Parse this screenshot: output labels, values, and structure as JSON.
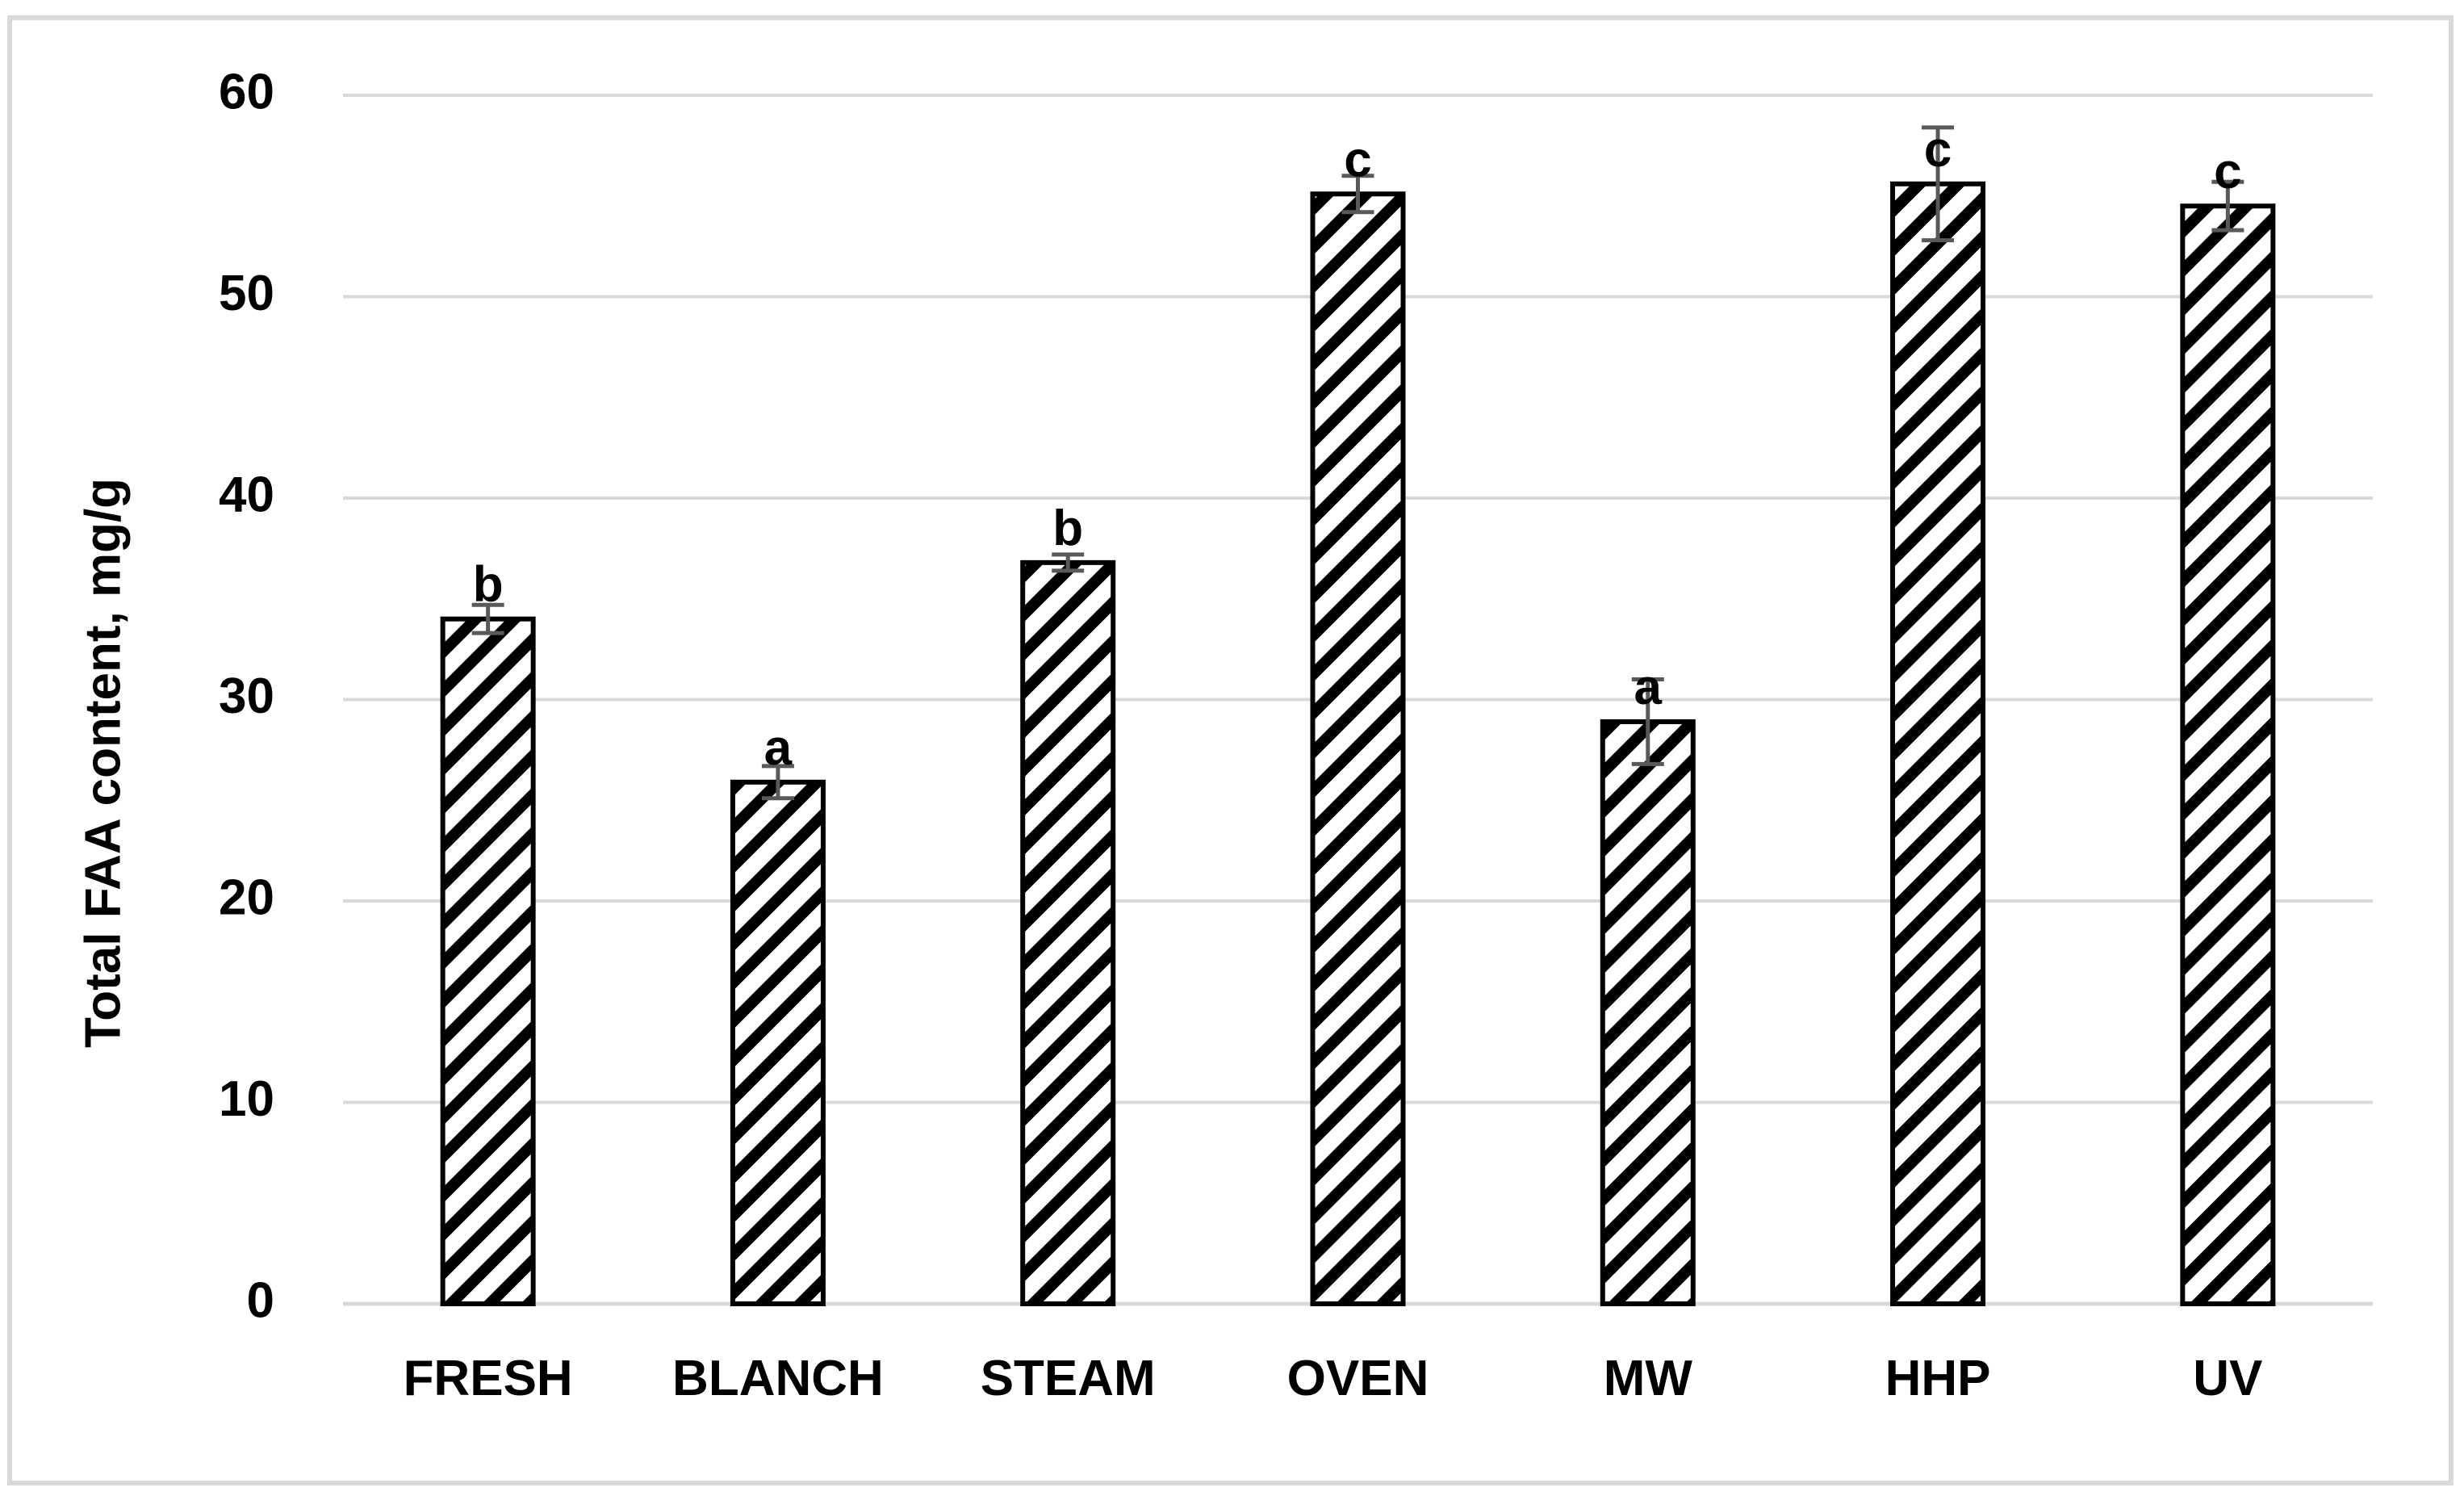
{
  "chart_data": {
    "type": "bar",
    "title": "",
    "xlabel": "",
    "ylabel": "Total FAA content, mg/g",
    "ylim": [
      0,
      60
    ],
    "yticks": [
      "0",
      "10",
      "20",
      "30",
      "40",
      "50",
      "60"
    ],
    "grid": true,
    "legend": "none",
    "bar_fill": "diagonal black/white hatch",
    "colors": {
      "bar_stroke": "#000000",
      "hatch": "#000000",
      "error_bar": "#595959",
      "grid": "#d9d9d9",
      "frame": "#d9d9d9"
    },
    "categories": [
      "FRESH",
      "BLANCH",
      "STEAM",
      "OVEN",
      "MW",
      "HHP",
      "UV"
    ],
    "values": [
      34.0,
      25.9,
      36.8,
      55.1,
      28.9,
      55.6,
      54.5
    ],
    "errors": [
      0.7,
      0.8,
      0.4,
      0.9,
      2.1,
      2.8,
      1.2
    ],
    "labels": [
      "b",
      "a",
      "b",
      "c",
      "a",
      "c",
      "c"
    ]
  }
}
